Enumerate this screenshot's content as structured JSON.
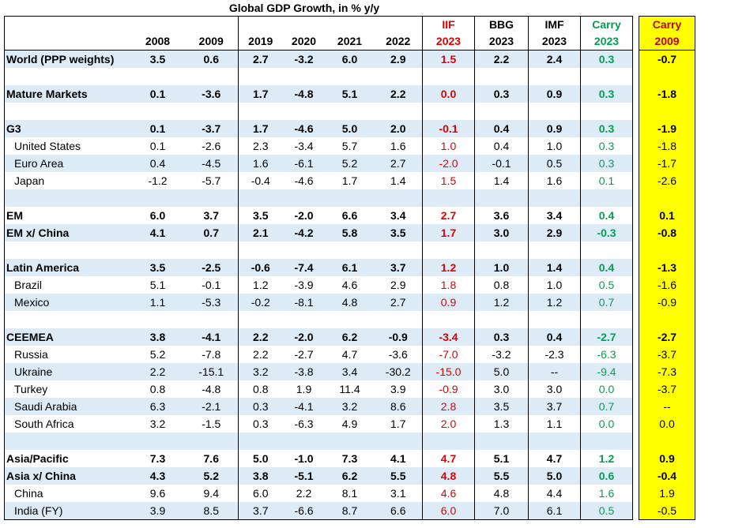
{
  "title": "Global GDP Growth, in % y/y",
  "header_top": [
    "",
    "",
    "",
    "",
    "",
    "",
    "",
    "IIF",
    "BBG",
    "IMF",
    "Carry",
    "Carry"
  ],
  "header_bottom": [
    "",
    "2008",
    "2009",
    "2019",
    "2020",
    "2021",
    "2022",
    "2023",
    "2023",
    "2023",
    "2023",
    "2009"
  ],
  "rows": [
    {
      "label": "World (PPP weights)",
      "values": [
        "3.5",
        "0.6",
        "2.7",
        "-3.2",
        "6.0",
        "2.9",
        "1.5",
        "2.2",
        "2.4",
        "0.3",
        "-0.7"
      ],
      "bold": true,
      "shade": true,
      "indent": false
    },
    {
      "label": "",
      "values": [
        "",
        "",
        "",
        "",
        "",
        "",
        "",
        "",
        "",
        "",
        ""
      ],
      "bold": false,
      "shade": false,
      "indent": false
    },
    {
      "label": "Mature Markets",
      "values": [
        "0.1",
        "-3.6",
        "1.7",
        "-4.8",
        "5.1",
        "2.2",
        "0.0",
        "0.3",
        "0.9",
        "0.3",
        "-1.8"
      ],
      "bold": true,
      "shade": true,
      "indent": false
    },
    {
      "label": "",
      "values": [
        "",
        "",
        "",
        "",
        "",
        "",
        "",
        "",
        "",
        "",
        ""
      ],
      "bold": false,
      "shade": false,
      "indent": false
    },
    {
      "label": "G3",
      "values": [
        "0.1",
        "-3.7",
        "1.7",
        "-4.6",
        "5.0",
        "2.0",
        "-0.1",
        "0.4",
        "0.9",
        "0.3",
        "-1.9"
      ],
      "bold": true,
      "shade": true,
      "indent": false
    },
    {
      "label": "United States",
      "values": [
        "0.1",
        "-2.6",
        "2.3",
        "-3.4",
        "5.7",
        "1.6",
        "1.0",
        "0.4",
        "1.0",
        "0.3",
        "-1.8"
      ],
      "bold": false,
      "shade": false,
      "indent": true
    },
    {
      "label": "Euro Area",
      "values": [
        "0.4",
        "-4.5",
        "1.6",
        "-6.1",
        "5.2",
        "2.7",
        "-2.0",
        "-0.1",
        "0.5",
        "0.3",
        "-1.7"
      ],
      "bold": false,
      "shade": true,
      "indent": true
    },
    {
      "label": "Japan",
      "values": [
        "-1.2",
        "-5.7",
        "-0.4",
        "-4.6",
        "1.7",
        "1.4",
        "1.5",
        "1.4",
        "1.6",
        "0.1",
        "-2.6"
      ],
      "bold": false,
      "shade": false,
      "indent": true
    },
    {
      "label": "",
      "values": [
        "",
        "",
        "",
        "",
        "",
        "",
        "",
        "",
        "",
        "",
        ""
      ],
      "bold": false,
      "shade": true,
      "indent": false
    },
    {
      "label": "EM",
      "values": [
        "6.0",
        "3.7",
        "3.5",
        "-2.0",
        "6.6",
        "3.4",
        "2.7",
        "3.6",
        "3.4",
        "0.4",
        "0.1"
      ],
      "bold": true,
      "shade": false,
      "indent": false
    },
    {
      "label": "EM x/ China",
      "values": [
        "4.1",
        "0.7",
        "2.1",
        "-4.2",
        "5.8",
        "3.5",
        "1.7",
        "3.0",
        "2.9",
        "-0.3",
        "-0.8"
      ],
      "bold": true,
      "shade": true,
      "indent": false
    },
    {
      "label": "",
      "values": [
        "",
        "",
        "",
        "",
        "",
        "",
        "",
        "",
        "",
        "",
        ""
      ],
      "bold": false,
      "shade": false,
      "indent": false
    },
    {
      "label": "Latin America",
      "values": [
        "3.5",
        "-2.5",
        "-0.6",
        "-7.4",
        "6.1",
        "3.7",
        "1.2",
        "1.0",
        "1.4",
        "0.4",
        "-1.3"
      ],
      "bold": true,
      "shade": true,
      "indent": false
    },
    {
      "label": "Brazil",
      "values": [
        "5.1",
        "-0.1",
        "1.2",
        "-3.9",
        "4.6",
        "2.9",
        "1.8",
        "0.8",
        "1.0",
        "0.5",
        "-1.6"
      ],
      "bold": false,
      "shade": false,
      "indent": true
    },
    {
      "label": "Mexico",
      "values": [
        "1.1",
        "-5.3",
        "-0.2",
        "-8.1",
        "4.8",
        "2.7",
        "0.9",
        "1.2",
        "1.2",
        "0.7",
        "-0.9"
      ],
      "bold": false,
      "shade": true,
      "indent": true
    },
    {
      "label": "",
      "values": [
        "",
        "",
        "",
        "",
        "",
        "",
        "",
        "",
        "",
        "",
        ""
      ],
      "bold": false,
      "shade": false,
      "indent": false
    },
    {
      "label": "CEEMEA",
      "values": [
        "3.8",
        "-4.1",
        "2.2",
        "-2.0",
        "6.2",
        "-0.9",
        "-3.4",
        "0.3",
        "0.4",
        "-2.7",
        "-2.7"
      ],
      "bold": true,
      "shade": true,
      "indent": false
    },
    {
      "label": "Russia",
      "values": [
        "5.2",
        "-7.8",
        "2.2",
        "-2.7",
        "4.7",
        "-3.6",
        "-7.0",
        "-3.2",
        "-2.3",
        "-6.3",
        "-3.7"
      ],
      "bold": false,
      "shade": false,
      "indent": true
    },
    {
      "label": "Ukraine",
      "values": [
        "2.2",
        "-15.1",
        "3.2",
        "-3.8",
        "3.4",
        "-30.2",
        "-15.0",
        "5.0",
        "--",
        "-9.4",
        "-7.3"
      ],
      "bold": false,
      "shade": true,
      "indent": true
    },
    {
      "label": "Turkey",
      "values": [
        "0.8",
        "-4.8",
        "0.8",
        "1.9",
        "11.4",
        "3.9",
        "-0.9",
        "3.0",
        "3.0",
        "0.0",
        "-3.7"
      ],
      "bold": false,
      "shade": false,
      "indent": true
    },
    {
      "label": "Saudi Arabia",
      "values": [
        "6.3",
        "-2.1",
        "0.3",
        "-4.1",
        "3.2",
        "8.6",
        "2.8",
        "3.5",
        "3.7",
        "0.7",
        "--"
      ],
      "bold": false,
      "shade": true,
      "indent": true
    },
    {
      "label": "South Africa",
      "values": [
        "3.2",
        "-1.5",
        "0.3",
        "-6.3",
        "4.9",
        "1.7",
        "2.0",
        "1.3",
        "1.1",
        "0.0",
        "0.0"
      ],
      "bold": false,
      "shade": false,
      "indent": true
    },
    {
      "label": "",
      "values": [
        "",
        "",
        "",
        "",
        "",
        "",
        "",
        "",
        "",
        "",
        ""
      ],
      "bold": false,
      "shade": true,
      "indent": false
    },
    {
      "label": "Asia/Pacific",
      "values": [
        "7.3",
        "7.6",
        "5.0",
        "-1.0",
        "7.3",
        "4.1",
        "4.7",
        "5.1",
        "4.7",
        "1.2",
        "0.9"
      ],
      "bold": true,
      "shade": false,
      "indent": false
    },
    {
      "label": "Asia x/ China",
      "values": [
        "4.3",
        "5.2",
        "3.8",
        "-5.1",
        "6.2",
        "5.5",
        "4.8",
        "5.5",
        "5.0",
        "0.6",
        "-0.4"
      ],
      "bold": true,
      "shade": true,
      "indent": false
    },
    {
      "label": "China",
      "values": [
        "9.6",
        "9.4",
        "6.0",
        "2.2",
        "8.1",
        "3.1",
        "4.6",
        "4.8",
        "4.4",
        "1.6",
        "1.9"
      ],
      "bold": false,
      "shade": false,
      "indent": true
    },
    {
      "label": "India (FY)",
      "values": [
        "3.9",
        "8.5",
        "3.7",
        "-6.6",
        "8.7",
        "6.6",
        "6.0",
        "7.0",
        "6.1",
        "0.5",
        "-0.5"
      ],
      "bold": false,
      "shade": true,
      "indent": true
    }
  ],
  "colors": {
    "shade": "#ddebf7",
    "iif": "#e00000",
    "carry": "#00a050",
    "highlight": "#ffff00",
    "carry2009_header": "#c00000"
  }
}
